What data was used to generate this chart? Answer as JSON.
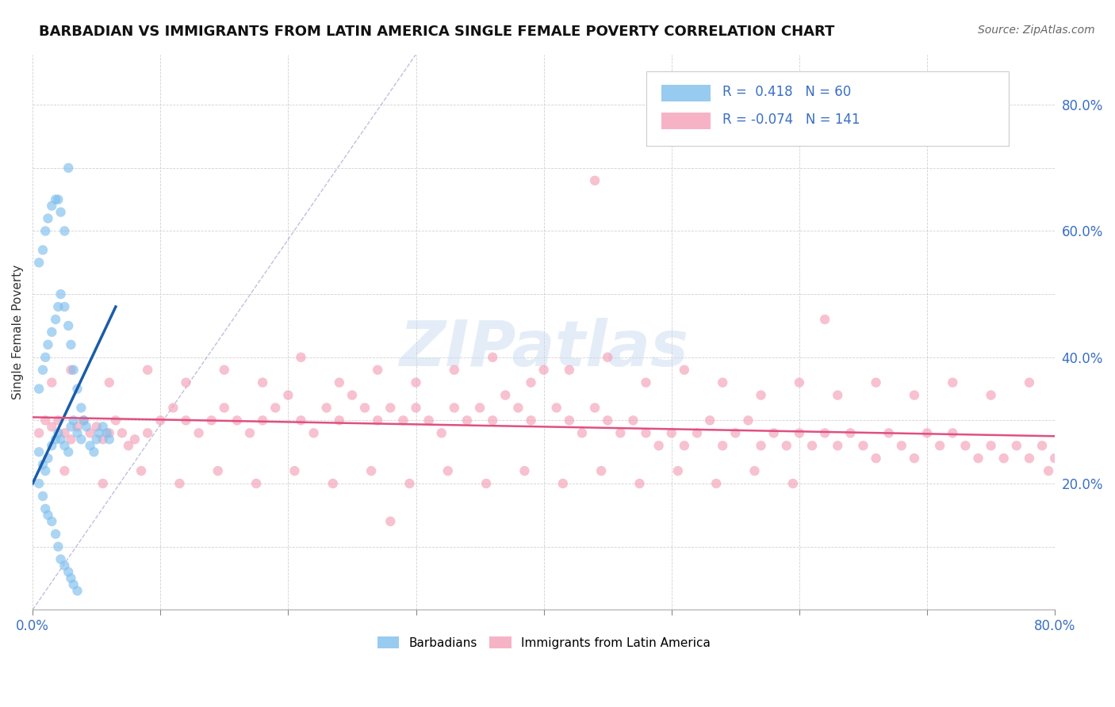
{
  "title": "BARBADIAN VS IMMIGRANTS FROM LATIN AMERICA SINGLE FEMALE POVERTY CORRELATION CHART",
  "source": "Source: ZipAtlas.com",
  "ylabel": "Single Female Poverty",
  "xlim": [
    0.0,
    0.8
  ],
  "ylim": [
    0.0,
    0.88
  ],
  "xticks": [
    0.0,
    0.1,
    0.2,
    0.3,
    0.4,
    0.5,
    0.6,
    0.7,
    0.8
  ],
  "ytick_right_values": [
    0.2,
    0.4,
    0.6,
    0.8
  ],
  "blue_R": 0.418,
  "blue_N": 60,
  "pink_R": -0.074,
  "pink_N": 141,
  "blue_color": "#7fbfed",
  "pink_color": "#f4a0b8",
  "blue_line_color": "#1a5ca8",
  "pink_line_color": "#e05080",
  "diag_line_color": "#8080c0",
  "watermark": "ZIPatlas",
  "watermark_blue": "#c5d8ee",
  "watermark_gray": "#b0b0b0",
  "background_color": "#ffffff",
  "legend_label_blue": "Barbadians",
  "legend_label_pink": "Immigrants from Latin America",
  "blue_scatter_x": [
    0.005,
    0.008,
    0.01,
    0.012,
    0.015,
    0.018,
    0.02,
    0.022,
    0.025,
    0.028,
    0.03,
    0.032,
    0.035,
    0.038,
    0.04,
    0.042,
    0.045,
    0.048,
    0.05,
    0.052,
    0.055,
    0.058,
    0.06,
    0.005,
    0.008,
    0.01,
    0.012,
    0.015,
    0.018,
    0.02,
    0.022,
    0.025,
    0.028,
    0.03,
    0.032,
    0.035,
    0.038,
    0.005,
    0.008,
    0.01,
    0.012,
    0.015,
    0.018,
    0.02,
    0.022,
    0.025,
    0.028,
    0.03,
    0.032,
    0.035,
    0.005,
    0.008,
    0.01,
    0.012,
    0.015,
    0.018,
    0.02,
    0.022,
    0.025,
    0.028
  ],
  "blue_scatter_y": [
    0.25,
    0.23,
    0.22,
    0.24,
    0.26,
    0.27,
    0.28,
    0.27,
    0.26,
    0.25,
    0.29,
    0.3,
    0.28,
    0.27,
    0.3,
    0.29,
    0.26,
    0.25,
    0.27,
    0.28,
    0.29,
    0.28,
    0.27,
    0.35,
    0.38,
    0.4,
    0.42,
    0.44,
    0.46,
    0.48,
    0.5,
    0.48,
    0.45,
    0.42,
    0.38,
    0.35,
    0.32,
    0.2,
    0.18,
    0.16,
    0.15,
    0.14,
    0.12,
    0.1,
    0.08,
    0.07,
    0.06,
    0.05,
    0.04,
    0.03,
    0.55,
    0.57,
    0.6,
    0.62,
    0.64,
    0.65,
    0.65,
    0.63,
    0.6,
    0.7
  ],
  "pink_scatter_x": [
    0.005,
    0.01,
    0.015,
    0.02,
    0.025,
    0.03,
    0.035,
    0.04,
    0.045,
    0.05,
    0.055,
    0.06,
    0.065,
    0.07,
    0.075,
    0.08,
    0.09,
    0.1,
    0.11,
    0.12,
    0.13,
    0.14,
    0.15,
    0.16,
    0.17,
    0.18,
    0.19,
    0.2,
    0.21,
    0.22,
    0.23,
    0.24,
    0.25,
    0.26,
    0.27,
    0.28,
    0.29,
    0.3,
    0.31,
    0.32,
    0.33,
    0.34,
    0.35,
    0.36,
    0.37,
    0.38,
    0.39,
    0.4,
    0.41,
    0.42,
    0.43,
    0.44,
    0.45,
    0.46,
    0.47,
    0.48,
    0.49,
    0.5,
    0.51,
    0.52,
    0.53,
    0.54,
    0.55,
    0.56,
    0.57,
    0.58,
    0.59,
    0.6,
    0.61,
    0.62,
    0.63,
    0.64,
    0.65,
    0.66,
    0.67,
    0.68,
    0.69,
    0.7,
    0.71,
    0.72,
    0.73,
    0.74,
    0.75,
    0.76,
    0.77,
    0.78,
    0.79,
    0.8,
    0.015,
    0.03,
    0.06,
    0.09,
    0.12,
    0.15,
    0.18,
    0.21,
    0.24,
    0.27,
    0.3,
    0.33,
    0.36,
    0.39,
    0.42,
    0.45,
    0.48,
    0.51,
    0.54,
    0.57,
    0.6,
    0.63,
    0.66,
    0.69,
    0.72,
    0.75,
    0.78,
    0.025,
    0.055,
    0.085,
    0.115,
    0.145,
    0.175,
    0.205,
    0.235,
    0.265,
    0.295,
    0.325,
    0.355,
    0.385,
    0.415,
    0.445,
    0.475,
    0.505,
    0.535,
    0.565,
    0.595,
    0.795,
    0.62,
    0.44,
    0.28
  ],
  "pink_scatter_y": [
    0.28,
    0.3,
    0.29,
    0.3,
    0.28,
    0.27,
    0.29,
    0.3,
    0.28,
    0.29,
    0.27,
    0.28,
    0.3,
    0.28,
    0.26,
    0.27,
    0.28,
    0.3,
    0.32,
    0.3,
    0.28,
    0.3,
    0.32,
    0.3,
    0.28,
    0.3,
    0.32,
    0.34,
    0.3,
    0.28,
    0.32,
    0.3,
    0.34,
    0.32,
    0.3,
    0.32,
    0.3,
    0.32,
    0.3,
    0.28,
    0.32,
    0.3,
    0.32,
    0.3,
    0.34,
    0.32,
    0.3,
    0.38,
    0.32,
    0.3,
    0.28,
    0.32,
    0.3,
    0.28,
    0.3,
    0.28,
    0.26,
    0.28,
    0.26,
    0.28,
    0.3,
    0.26,
    0.28,
    0.3,
    0.26,
    0.28,
    0.26,
    0.28,
    0.26,
    0.28,
    0.26,
    0.28,
    0.26,
    0.24,
    0.28,
    0.26,
    0.24,
    0.28,
    0.26,
    0.28,
    0.26,
    0.24,
    0.26,
    0.24,
    0.26,
    0.24,
    0.26,
    0.24,
    0.36,
    0.38,
    0.36,
    0.38,
    0.36,
    0.38,
    0.36,
    0.4,
    0.36,
    0.38,
    0.36,
    0.38,
    0.4,
    0.36,
    0.38,
    0.4,
    0.36,
    0.38,
    0.36,
    0.34,
    0.36,
    0.34,
    0.36,
    0.34,
    0.36,
    0.34,
    0.36,
    0.22,
    0.2,
    0.22,
    0.2,
    0.22,
    0.2,
    0.22,
    0.2,
    0.22,
    0.2,
    0.22,
    0.2,
    0.22,
    0.2,
    0.22,
    0.2,
    0.22,
    0.2,
    0.22,
    0.2,
    0.22,
    0.46,
    0.68,
    0.14
  ]
}
